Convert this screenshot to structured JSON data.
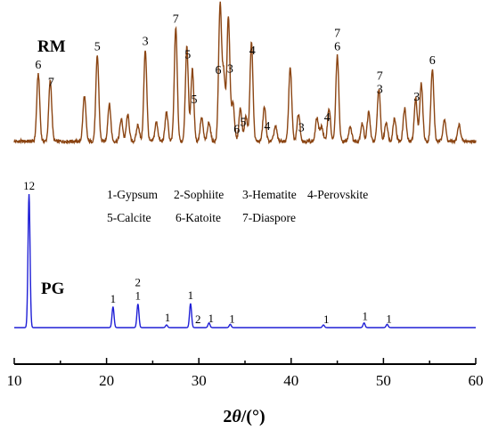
{
  "chart_data": {
    "type": "line",
    "xlabel": "2θ/(°)",
    "xlim": [
      10,
      60
    ],
    "xticks": [
      "10",
      "20",
      "30",
      "40",
      "50",
      "60"
    ],
    "grid": false,
    "legend": {
      "placement": "center",
      "entries": [
        "1-Gypsum",
        "2-Sophiite",
        "3-Hematite",
        "4-Perovskite",
        "5-Calcite",
        "6-Katoite",
        "7-Diaspore"
      ]
    },
    "series": [
      {
        "name": "RM",
        "color": "#8B4513",
        "baseline": 0.04,
        "peaks": [
          {
            "x": 12.6,
            "h": 0.49
          },
          {
            "x": 13.9,
            "h": 0.44
          },
          {
            "x": 17.6,
            "h": 0.33
          },
          {
            "x": 19.0,
            "h": 0.62
          },
          {
            "x": 20.3,
            "h": 0.27
          },
          {
            "x": 21.6,
            "h": 0.16
          },
          {
            "x": 22.3,
            "h": 0.19
          },
          {
            "x": 23.4,
            "h": 0.12
          },
          {
            "x": 24.2,
            "h": 0.66
          },
          {
            "x": 25.4,
            "h": 0.14
          },
          {
            "x": 26.5,
            "h": 0.21
          },
          {
            "x": 27.5,
            "h": 0.82
          },
          {
            "x": 28.7,
            "h": 0.68
          },
          {
            "x": 29.3,
            "h": 0.52
          },
          {
            "x": 30.3,
            "h": 0.17
          },
          {
            "x": 31.1,
            "h": 0.14
          },
          {
            "x": 32.3,
            "h": 0.98
          },
          {
            "x": 32.7,
            "h": 0.48
          },
          {
            "x": 33.2,
            "h": 0.9
          },
          {
            "x": 33.7,
            "h": 0.28
          },
          {
            "x": 34.5,
            "h": 0.24
          },
          {
            "x": 35.1,
            "h": 0.18
          },
          {
            "x": 35.7,
            "h": 0.72
          },
          {
            "x": 37.1,
            "h": 0.25
          },
          {
            "x": 38.3,
            "h": 0.11
          },
          {
            "x": 39.9,
            "h": 0.54
          },
          {
            "x": 40.8,
            "h": 0.2
          },
          {
            "x": 42.8,
            "h": 0.17
          },
          {
            "x": 43.3,
            "h": 0.11
          },
          {
            "x": 44.1,
            "h": 0.24
          },
          {
            "x": 45.0,
            "h": 0.62
          },
          {
            "x": 46.4,
            "h": 0.11
          },
          {
            "x": 47.7,
            "h": 0.13
          },
          {
            "x": 48.4,
            "h": 0.21
          },
          {
            "x": 49.5,
            "h": 0.38
          },
          {
            "x": 50.3,
            "h": 0.14
          },
          {
            "x": 51.2,
            "h": 0.17
          },
          {
            "x": 52.3,
            "h": 0.24
          },
          {
            "x": 53.5,
            "h": 0.31
          },
          {
            "x": 54.1,
            "h": 0.42
          },
          {
            "x": 55.3,
            "h": 0.52
          },
          {
            "x": 56.6,
            "h": 0.16
          },
          {
            "x": 58.2,
            "h": 0.12
          }
        ],
        "peak_labels": [
          {
            "x": 12.6,
            "text": "6"
          },
          {
            "x": 14.0,
            "text": "7"
          },
          {
            "x": 19.0,
            "text": "5"
          },
          {
            "x": 24.2,
            "text": "3"
          },
          {
            "x": 27.5,
            "text": "7"
          },
          {
            "x": 28.8,
            "text": "5"
          },
          {
            "x": 29.5,
            "text": "5"
          },
          {
            "x": 32.1,
            "text": "6"
          },
          {
            "x": 33.4,
            "text": "3"
          },
          {
            "x": 34.1,
            "text": "6"
          },
          {
            "x": 34.8,
            "text": "5"
          },
          {
            "x": 35.8,
            "text": "4"
          },
          {
            "x": 37.4,
            "text": "4"
          },
          {
            "x": 41.1,
            "text": "3"
          },
          {
            "x": 43.9,
            "text": "4"
          },
          {
            "x": 45.0,
            "text": "7"
          },
          {
            "x": 45.0,
            "text": "6"
          },
          {
            "x": 49.6,
            "text": "7"
          },
          {
            "x": 49.6,
            "text": "3"
          },
          {
            "x": 53.6,
            "text": "3"
          },
          {
            "x": 55.3,
            "text": "6"
          }
        ]
      },
      {
        "name": "PG",
        "color": "#1f1fd6",
        "baseline": 0.0,
        "peaks": [
          {
            "x": 11.6,
            "h": 1.0
          },
          {
            "x": 20.7,
            "h": 0.155
          },
          {
            "x": 23.4,
            "h": 0.177
          },
          {
            "x": 26.5,
            "h": 0.02
          },
          {
            "x": 29.1,
            "h": 0.18
          },
          {
            "x": 31.1,
            "h": 0.035
          },
          {
            "x": 33.4,
            "h": 0.025
          },
          {
            "x": 43.5,
            "h": 0.02
          },
          {
            "x": 47.9,
            "h": 0.035
          },
          {
            "x": 50.4,
            "h": 0.025
          }
        ],
        "peak_labels": [
          {
            "x": 11.6,
            "text": "12"
          },
          {
            "x": 20.7,
            "text": "1"
          },
          {
            "x": 23.4,
            "text": "2"
          },
          {
            "x": 23.4,
            "text": "1"
          },
          {
            "x": 26.6,
            "text": "1"
          },
          {
            "x": 29.1,
            "text": "1"
          },
          {
            "x": 29.9,
            "text": "2"
          },
          {
            "x": 31.3,
            "text": "1"
          },
          {
            "x": 33.6,
            "text": "1"
          },
          {
            "x": 43.8,
            "text": "1"
          },
          {
            "x": 48.0,
            "text": "1"
          },
          {
            "x": 50.6,
            "text": "1"
          }
        ]
      }
    ]
  }
}
